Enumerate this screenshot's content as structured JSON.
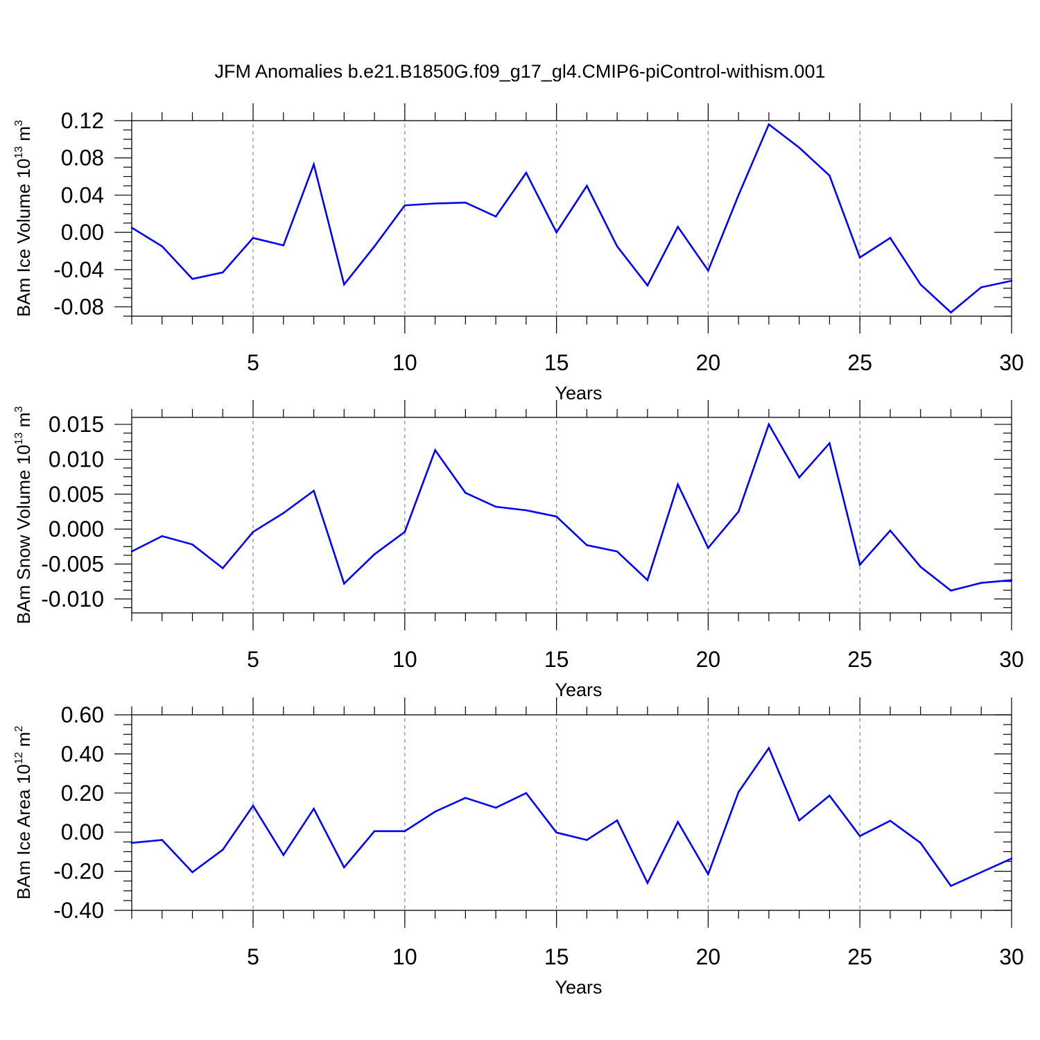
{
  "title": "JFM Anomalies b.e21.B1850G.f09_g17_gl4.CMIP6-piControl-withism.001",
  "line_color": "#0000ff",
  "grid_color": "#888888",
  "chart_data": [
    {
      "type": "line",
      "ylabel_main": "BAm Ice Volume 10",
      "ylabel_sup1": "13",
      "ylabel_mid": " m",
      "ylabel_sup2": "3",
      "xlabel": "Years",
      "xlim": [
        1,
        30
      ],
      "ylim": [
        -0.09,
        0.12
      ],
      "yticks": [
        -0.08,
        -0.04,
        0.0,
        0.04,
        0.08,
        0.12
      ],
      "ytick_labels": [
        "-0.08",
        "-0.04",
        "0.00",
        "0.04",
        "0.08",
        "0.12"
      ],
      "xticks": [
        5,
        10,
        15,
        20,
        25,
        30
      ],
      "xtick_labels": [
        "5",
        "10",
        "15",
        "20",
        "25",
        "30"
      ],
      "grid": "dashed vertical at labeled x ticks",
      "x": [
        1,
        2,
        3,
        4,
        5,
        6,
        7,
        8,
        9,
        10,
        11,
        12,
        13,
        14,
        15,
        16,
        17,
        18,
        19,
        20,
        21,
        22,
        23,
        24,
        25,
        26,
        27,
        28,
        29,
        30
      ],
      "values": [
        0.005,
        -0.015,
        -0.05,
        -0.043,
        -0.006,
        -0.014,
        0.073,
        -0.056,
        -0.015,
        0.029,
        0.031,
        0.032,
        0.017,
        0.064,
        0.0,
        0.05,
        -0.015,
        -0.057,
        0.006,
        -0.041,
        0.04,
        0.116,
        0.091,
        0.061,
        -0.027,
        -0.006,
        -0.056,
        -0.086,
        -0.059,
        -0.052
      ]
    },
    {
      "type": "line",
      "ylabel_main": "BAm Snow Volume 10",
      "ylabel_sup1": "13",
      "ylabel_mid": " m",
      "ylabel_sup2": "3",
      "xlabel": "Years",
      "xlim": [
        1,
        30
      ],
      "ylim": [
        -0.012,
        0.016
      ],
      "yticks": [
        -0.01,
        -0.005,
        0.0,
        0.005,
        0.01,
        0.015
      ],
      "ytick_labels": [
        "-0.010",
        "-0.005",
        "0.000",
        "0.005",
        "0.010",
        "0.015"
      ],
      "xticks": [
        5,
        10,
        15,
        20,
        25,
        30
      ],
      "xtick_labels": [
        "5",
        "10",
        "15",
        "20",
        "25",
        "30"
      ],
      "grid": "dashed vertical at labeled x ticks",
      "x": [
        1,
        2,
        3,
        4,
        5,
        6,
        7,
        8,
        9,
        10,
        11,
        12,
        13,
        14,
        15,
        16,
        17,
        18,
        19,
        20,
        21,
        22,
        23,
        24,
        25,
        26,
        27,
        28,
        29,
        30
      ],
      "values": [
        -0.0032,
        -0.001,
        -0.0022,
        -0.0056,
        -0.0004,
        0.0023,
        0.0055,
        -0.0078,
        -0.0036,
        -0.0004,
        0.0113,
        0.0052,
        0.0032,
        0.0027,
        0.0018,
        -0.0023,
        -0.0032,
        -0.0073,
        0.0064,
        -0.0027,
        0.0025,
        0.015,
        0.0074,
        0.0123,
        -0.0051,
        -0.0002,
        -0.0054,
        -0.0088,
        -0.0077,
        -0.0073
      ]
    },
    {
      "type": "line",
      "ylabel_main": "BAm Ice Area 10",
      "ylabel_sup1": "12",
      "ylabel_mid": " m",
      "ylabel_sup2": "2",
      "xlabel": "Years",
      "xlim": [
        1,
        30
      ],
      "ylim": [
        -0.4,
        0.6
      ],
      "yticks": [
        -0.4,
        -0.2,
        0.0,
        0.2,
        0.4,
        0.6
      ],
      "ytick_labels": [
        "-0.40",
        "-0.20",
        "0.00",
        "0.20",
        "0.40",
        "0.60"
      ],
      "xticks": [
        5,
        10,
        15,
        20,
        25,
        30
      ],
      "xtick_labels": [
        "5",
        "10",
        "15",
        "20",
        "25",
        "30"
      ],
      "grid": "dashed vertical at labeled x ticks",
      "x": [
        1,
        2,
        3,
        4,
        5,
        6,
        7,
        8,
        9,
        10,
        11,
        12,
        13,
        14,
        15,
        16,
        17,
        18,
        19,
        20,
        21,
        22,
        23,
        24,
        25,
        26,
        27,
        28,
        29,
        30
      ],
      "values": [
        -0.055,
        -0.04,
        -0.205,
        -0.09,
        0.135,
        -0.117,
        0.12,
        -0.18,
        0.005,
        0.005,
        0.105,
        0.175,
        0.125,
        0.2,
        -0.002,
        -0.04,
        0.06,
        -0.26,
        0.052,
        -0.215,
        0.205,
        0.43,
        0.06,
        0.187,
        -0.02,
        0.058,
        -0.055,
        -0.275,
        -0.205,
        -0.135
      ]
    }
  ]
}
